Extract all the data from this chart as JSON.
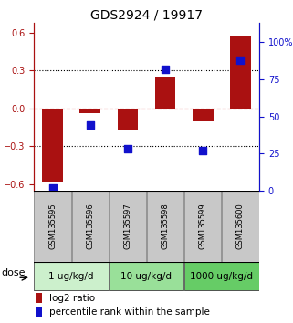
{
  "title": "GDS2924 / 19917",
  "samples": [
    "GSM135595",
    "GSM135596",
    "GSM135597",
    "GSM135598",
    "GSM135599",
    "GSM135600"
  ],
  "log2_ratio": [
    -0.58,
    -0.04,
    -0.17,
    0.25,
    -0.1,
    0.57
  ],
  "percentile_rank": [
    2,
    44,
    28,
    82,
    27,
    88
  ],
  "doses": [
    {
      "label": "1 ug/kg/d",
      "samples": [
        0,
        1
      ],
      "color": "#ccf0cc"
    },
    {
      "label": "10 ug/kg/d",
      "samples": [
        2,
        3
      ],
      "color": "#99e099"
    },
    {
      "label": "1000 ug/kg/d",
      "samples": [
        4,
        5
      ],
      "color": "#66cc66"
    }
  ],
  "bar_color": "#aa1111",
  "dot_color": "#1111cc",
  "left_ylim": [
    -0.65,
    0.68
  ],
  "right_ylim": [
    0,
    113.3
  ],
  "yticks_left": [
    -0.6,
    -0.3,
    0.0,
    0.3,
    0.6
  ],
  "yticks_right": [
    0,
    25,
    50,
    75,
    100
  ],
  "hlines_dotted": [
    -0.3,
    0.3
  ],
  "hline_zero_color": "#cc1111",
  "bar_width": 0.55,
  "dot_size": 28,
  "background_color": "#ffffff",
  "legend_labels": [
    "log2 ratio",
    "percentile rank within the sample"
  ],
  "dose_label": "dose",
  "title_fontsize": 10,
  "tick_fontsize": 7,
  "legend_fontsize": 7.5,
  "sample_fontsize": 6,
  "dose_fontsize": 7.5,
  "gray_color": "#c8c8c8",
  "gray_edge_color": "#888888"
}
